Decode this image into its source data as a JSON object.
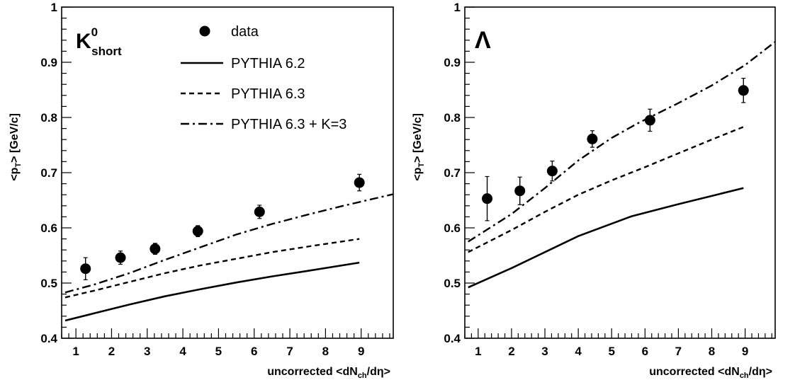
{
  "chart_data": [
    {
      "type": "line",
      "panel_label": "K",
      "panel_label_sup": "0",
      "panel_label_sub": "short",
      "xlabel": "uncorrected <dN",
      "xlabel_sub": "ch",
      "xlabel_tail": "/dη>",
      "ylabel": "<p",
      "ylabel_sub": "T",
      "ylabel_tail": "> [GeV/c]",
      "xlim": [
        0.6,
        9.9
      ],
      "ylim": [
        0.4,
        1.0
      ],
      "xticks": [
        "1",
        "2",
        "3",
        "4",
        "5",
        "6",
        "7",
        "8",
        "9"
      ],
      "yticks": [
        "0.4",
        "0.5",
        "0.6",
        "0.7",
        "0.8",
        "0.9",
        "1"
      ],
      "grid": false,
      "legend_placement": "top-right",
      "legend": [
        "data",
        "PYTHIA 6.2",
        "PYTHIA 6.3",
        "PYTHIA 6.3 + K=3"
      ],
      "series": [
        {
          "name": "data",
          "style": "markers",
          "x": [
            1.27,
            2.25,
            3.22,
            4.42,
            6.15,
            8.95
          ],
          "y": [
            0.526,
            0.546,
            0.562,
            0.594,
            0.629,
            0.682
          ],
          "err": [
            0.02,
            0.012,
            0.01,
            0.01,
            0.012,
            0.015
          ]
        },
        {
          "name": "PYTHIA 6.2",
          "style": "solid",
          "x": [
            0.7,
            1.5,
            2.5,
            3.5,
            4.5,
            5.5,
            6.5,
            7.5,
            8.95
          ],
          "y": [
            0.432,
            0.445,
            0.461,
            0.476,
            0.489,
            0.501,
            0.512,
            0.522,
            0.537
          ]
        },
        {
          "name": "PYTHIA 6.3",
          "style": "dashed",
          "x": [
            0.7,
            1.5,
            2.5,
            3.5,
            4.5,
            5.5,
            6.5,
            7.5,
            8.95
          ],
          "y": [
            0.474,
            0.486,
            0.502,
            0.518,
            0.532,
            0.544,
            0.556,
            0.566,
            0.58
          ]
        },
        {
          "name": "PYTHIA 6.3 + K=3",
          "style": "dashdot",
          "x": [
            0.7,
            1.5,
            2.5,
            3.5,
            4.5,
            5.5,
            6.5,
            7.5,
            8.5,
            9.9
          ],
          "y": [
            0.483,
            0.497,
            0.518,
            0.542,
            0.565,
            0.588,
            0.607,
            0.624,
            0.64,
            0.661
          ]
        }
      ]
    },
    {
      "type": "line",
      "panel_label": "Λ",
      "xlabel": "uncorrected <dN",
      "xlabel_sub": "ch",
      "xlabel_tail": "/dη>",
      "ylabel": "<p",
      "ylabel_sub": "T",
      "ylabel_tail": "> [GeV/c]",
      "xlim": [
        0.6,
        9.9
      ],
      "ylim": [
        0.4,
        1.0
      ],
      "xticks": [
        "1",
        "2",
        "3",
        "4",
        "5",
        "6",
        "7",
        "8",
        "9"
      ],
      "yticks": [
        "0.4",
        "0.5",
        "0.6",
        "0.7",
        "0.8",
        "0.9",
        "1"
      ],
      "grid": false,
      "series": [
        {
          "name": "data",
          "style": "markers",
          "x": [
            1.27,
            2.25,
            3.22,
            4.42,
            6.15,
            8.95
          ],
          "y": [
            0.653,
            0.667,
            0.703,
            0.761,
            0.795,
            0.849
          ],
          "err": [
            0.04,
            0.025,
            0.018,
            0.015,
            0.02,
            0.022
          ]
        },
        {
          "name": "PYTHIA 6.2",
          "style": "solid",
          "x": [
            0.7,
            2.0,
            3.0,
            4.0,
            5.6,
            7.0,
            8.95
          ],
          "y": [
            0.492,
            0.527,
            0.556,
            0.585,
            0.621,
            0.643,
            0.672
          ]
        },
        {
          "name": "PYTHIA 6.3",
          "style": "dashed",
          "x": [
            0.7,
            2.0,
            3.0,
            4.0,
            5.0,
            6.0,
            7.0,
            8.0,
            8.95
          ],
          "y": [
            0.556,
            0.596,
            0.629,
            0.66,
            0.686,
            0.71,
            0.735,
            0.76,
            0.783
          ]
        },
        {
          "name": "PYTHIA 6.3 + K=3",
          "style": "dashdot",
          "x": [
            0.7,
            2.0,
            3.0,
            4.0,
            5.0,
            5.8,
            7.0,
            8.0,
            9.0,
            9.9
          ],
          "y": [
            0.575,
            0.625,
            0.672,
            0.722,
            0.763,
            0.79,
            0.826,
            0.858,
            0.895,
            0.937
          ]
        }
      ]
    }
  ]
}
